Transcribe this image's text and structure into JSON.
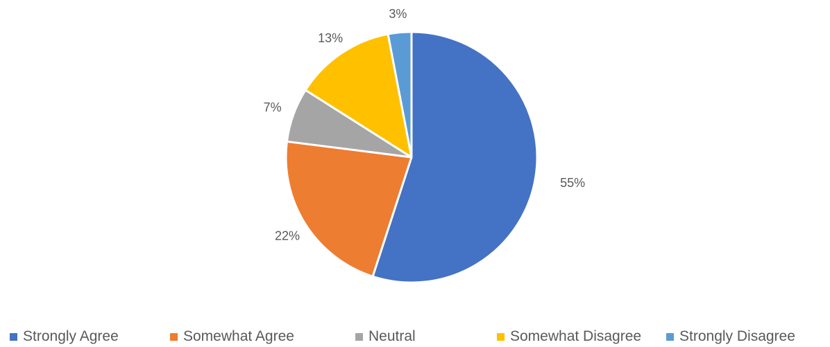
{
  "chart_data": {
    "type": "pie",
    "title": "",
    "categories": [
      "Strongly Agree",
      "Somewhat Agree",
      "Neutral",
      "Somewhat Disagree",
      "Strongly Disagree"
    ],
    "values": [
      55,
      22,
      7,
      13,
      3
    ],
    "value_labels": [
      "55%",
      "22%",
      "7%",
      "13%",
      "3%"
    ],
    "colors": [
      "#4472C4",
      "#ED7D31",
      "#A5A5A5",
      "#FFC000",
      "#5B9BD5"
    ],
    "start_angle_deg": 0,
    "direction": "clockwise",
    "legend_position": "bottom"
  }
}
